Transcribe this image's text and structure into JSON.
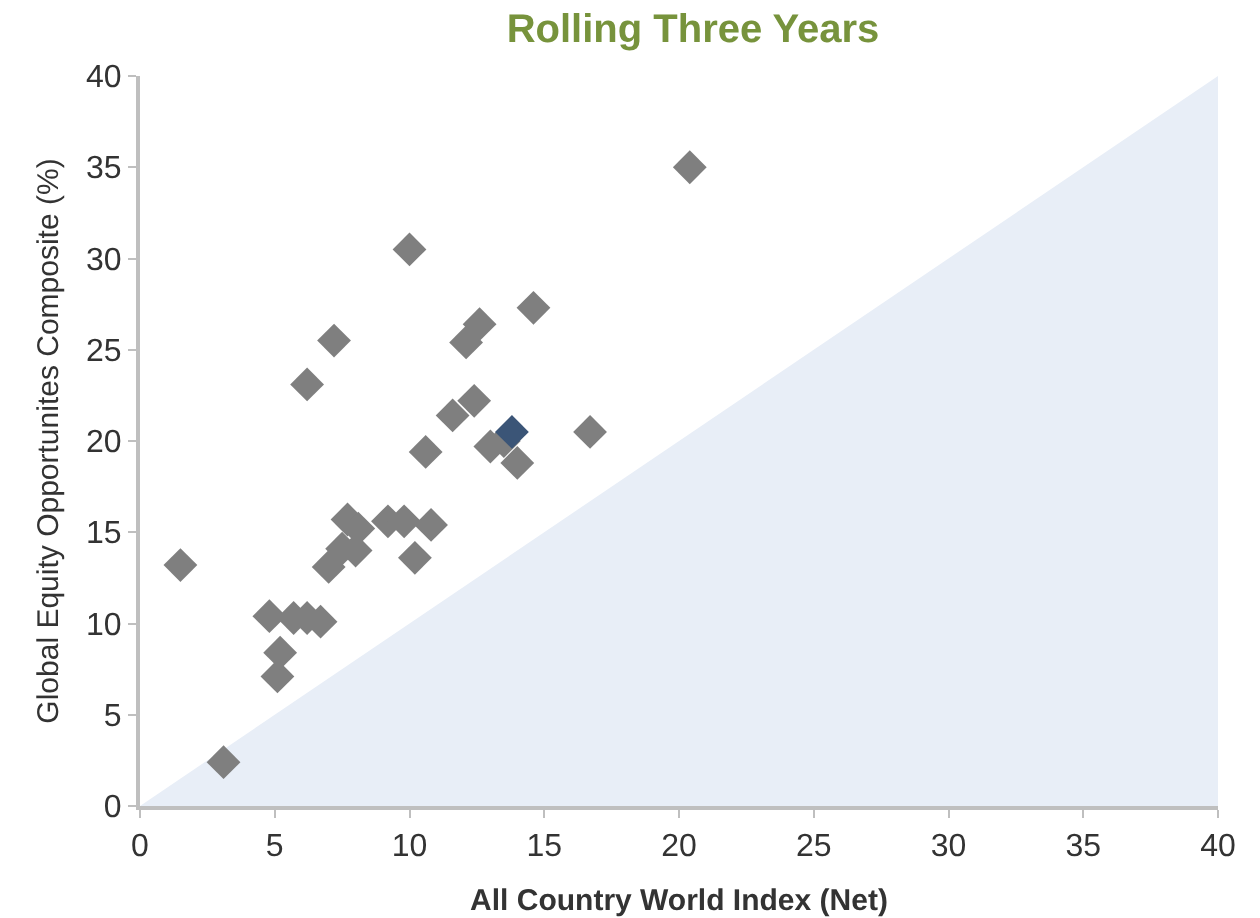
{
  "chart_data": {
    "type": "scatter",
    "title": "Rolling Three Years",
    "xlabel": "All Country World Index (Net)",
    "ylabel": "Global Equity Opportunites Composite (%)",
    "xlim": [
      0,
      40
    ],
    "xticks": [
      0,
      5,
      10,
      15,
      20,
      25,
      30,
      35,
      40
    ],
    "ylim": [
      0,
      40
    ],
    "yticks": [
      0,
      5,
      10,
      15,
      20,
      25,
      30,
      35,
      40
    ],
    "grid": false,
    "marker": "diamond",
    "series": [
      {
        "type": "area",
        "marker": "none",
        "color": "#e8eef7",
        "x": [
          0,
          40
        ],
        "values": [
          0,
          40
        ]
      },
      {
        "color": "#7f7f7f",
        "x": [
          1.5,
          3.1,
          4.8,
          5.1,
          5.2,
          5.7,
          6.2,
          6.2,
          6.7,
          7.0,
          7.2,
          7.5,
          7.7,
          8.1,
          8.0,
          9.2,
          9.8,
          10.0,
          10.2,
          10.6,
          10.8,
          11.6,
          12.1,
          12.4,
          12.6,
          13.0,
          13.5,
          14.0,
          14.6,
          16.7,
          20.4
        ],
        "values": [
          13.2,
          2.4,
          10.4,
          7.1,
          8.4,
          10.3,
          10.3,
          23.1,
          10.1,
          13.1,
          25.5,
          14.1,
          15.7,
          15.2,
          14.0,
          15.6,
          15.6,
          30.5,
          13.6,
          19.4,
          15.4,
          21.4,
          25.4,
          22.2,
          26.4,
          19.7,
          20.0,
          18.8,
          27.3,
          20.5,
          35.0
        ]
      },
      {
        "color": "#3b5577",
        "x": [
          13.8
        ],
        "values": [
          20.5
        ]
      }
    ]
  }
}
